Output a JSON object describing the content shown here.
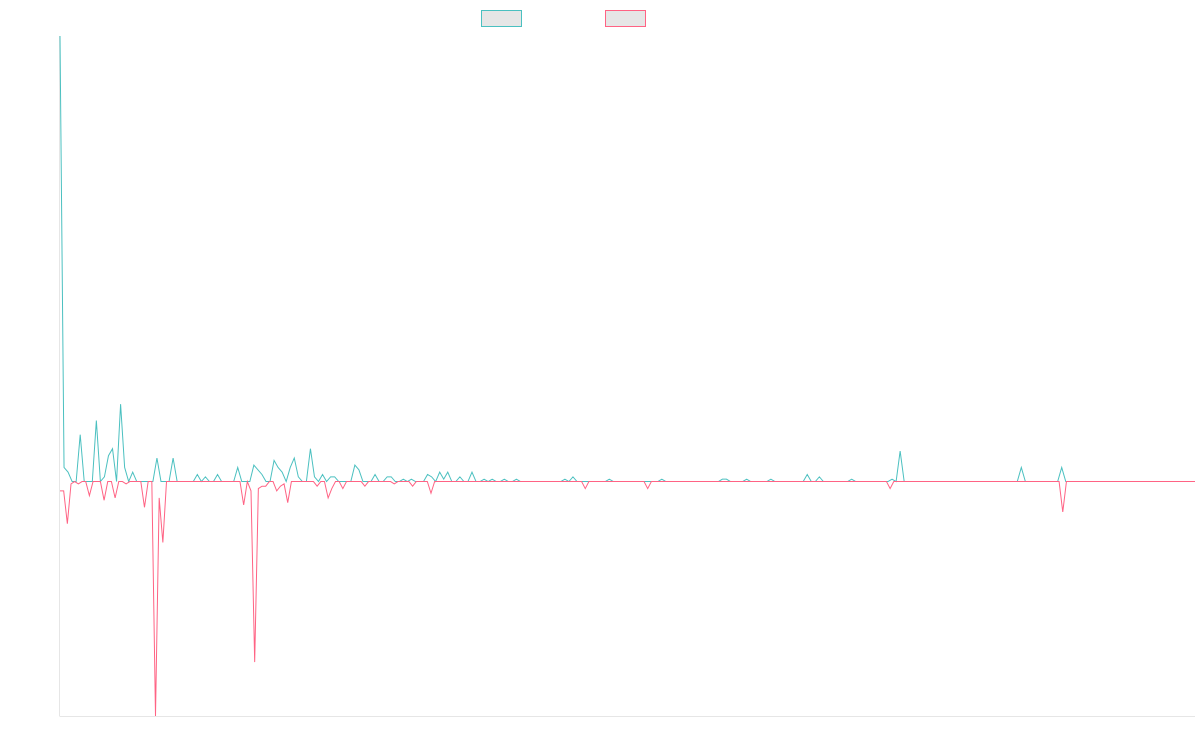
{
  "chart_data": {
    "type": "line",
    "title": "",
    "xlabel": "",
    "ylabel": "",
    "grid": false,
    "legend_position": "top-center",
    "ylim": [
      -1,
      1.9
    ],
    "series": [
      {
        "color": "#4bc0c0",
        "fill": "#e6e6e6",
        "values": [
          1.9,
          0.06,
          0.04,
          0,
          0,
          0.2,
          0,
          0,
          0,
          0.26,
          0,
          0.02,
          0.11,
          0.14,
          0,
          0.33,
          0.06,
          0,
          0.04,
          0,
          0,
          0,
          0,
          0,
          0.1,
          0,
          0,
          0,
          0.1,
          0,
          0,
          0,
          0,
          0,
          0.03,
          0,
          0.02,
          0,
          0,
          0.03,
          0,
          0,
          0,
          0,
          0.06,
          0,
          0,
          0,
          0.07,
          0.05,
          0.03,
          0,
          0,
          0.09,
          0.06,
          0.04,
          0,
          0.06,
          0.1,
          0.02,
          0,
          0,
          0.14,
          0.02,
          0,
          0.03,
          0,
          0.02,
          0.02,
          0,
          0,
          0,
          0,
          0.07,
          0.05,
          0,
          0,
          0,
          0.03,
          0,
          0,
          0.02,
          0.02,
          0,
          0,
          0.01,
          0,
          0.01,
          0,
          0,
          0,
          0.03,
          0.02,
          0,
          0.04,
          0.01,
          0.04,
          0,
          0,
          0.02,
          0,
          0,
          0.04,
          0,
          0,
          0.01,
          0,
          0.01,
          0,
          0,
          0.01,
          0,
          0,
          0.01,
          0,
          0,
          0,
          0,
          0,
          0,
          0,
          0,
          0,
          0,
          0,
          0.01,
          0,
          0.02,
          0,
          0,
          0,
          0,
          0,
          0,
          0,
          0,
          0.01,
          0,
          0,
          0,
          0,
          0,
          0,
          0,
          0,
          0,
          0,
          0,
          0,
          0.01,
          0,
          0,
          0,
          0,
          0,
          0,
          0,
          0,
          0,
          0,
          0,
          0,
          0,
          0,
          0.01,
          0.01,
          0,
          0,
          0,
          0,
          0.01,
          0,
          0,
          0,
          0,
          0,
          0.01,
          0,
          0,
          0,
          0,
          0,
          0,
          0,
          0,
          0.03,
          0,
          0,
          0.02,
          0,
          0,
          0,
          0,
          0,
          0,
          0,
          0.01,
          0,
          0,
          0,
          0,
          0,
          0,
          0,
          0,
          0,
          0.01,
          0,
          0.13,
          0,
          0,
          0,
          0,
          0,
          0,
          0,
          0,
          0,
          0,
          0,
          0,
          0,
          0,
          0,
          0,
          0,
          0,
          0,
          0,
          0,
          0,
          0,
          0,
          0,
          0,
          0,
          0,
          0,
          0.06,
          0,
          0,
          0,
          0,
          0,
          0,
          0,
          0,
          0,
          0.06,
          0,
          0,
          0,
          0,
          0,
          0,
          0,
          0,
          0,
          0,
          0,
          0,
          0,
          0,
          0,
          0,
          0,
          0,
          0,
          0,
          0,
          0,
          0,
          0,
          0,
          0,
          0,
          0,
          0,
          0,
          0,
          0,
          0
        ]
      },
      {
        "color": "#ff6384",
        "fill": "#e6e6e6",
        "values": [
          -0.04,
          -0.04,
          -0.18,
          -0.01,
          0,
          -0.01,
          0,
          0,
          -0.06,
          0,
          0,
          0,
          -0.08,
          0,
          0,
          -0.07,
          0,
          0,
          -0.01,
          0,
          0,
          0,
          0,
          -0.11,
          0,
          0,
          -1,
          -0.07,
          -0.26,
          0,
          0,
          0,
          0,
          0,
          0,
          0,
          0,
          0,
          0,
          0,
          0,
          0,
          0,
          0,
          0,
          0,
          0,
          0,
          0,
          0,
          -0.1,
          0,
          -0.04,
          -0.77,
          -0.03,
          -0.02,
          -0.02,
          0,
          0,
          -0.04,
          -0.02,
          -0.01,
          -0.09,
          0,
          0,
          0,
          0,
          0,
          0,
          0,
          -0.02,
          0,
          0,
          -0.07,
          -0.03,
          0,
          0,
          -0.03,
          0,
          0,
          0,
          0,
          0,
          -0.02,
          0,
          0,
          0,
          0,
          0,
          0,
          0,
          -0.01,
          0,
          0,
          0,
          0,
          -0.02,
          0,
          0,
          0,
          0,
          -0.05,
          0,
          0,
          0,
          0,
          0,
          0,
          0,
          0,
          0,
          0,
          0,
          0,
          0,
          0,
          0,
          0,
          0,
          0,
          0,
          0,
          0,
          0,
          0,
          0,
          0,
          0,
          0,
          0,
          0,
          0,
          0,
          0,
          0,
          0,
          0,
          0,
          0,
          0,
          0,
          0,
          0,
          -0.03,
          0,
          0,
          0,
          0,
          0,
          0,
          0,
          0,
          0,
          0,
          0,
          0,
          0,
          0,
          0,
          0,
          -0.03,
          0,
          0,
          0,
          0,
          0,
          0,
          0,
          0,
          0,
          0,
          0,
          0,
          0,
          0,
          0,
          0,
          0,
          0,
          0,
          0,
          0,
          0,
          0,
          0,
          0,
          0,
          0,
          0,
          0,
          0,
          0,
          0,
          0,
          0,
          0,
          0,
          0,
          0,
          0,
          0,
          0,
          0,
          0,
          0,
          0,
          0,
          0,
          0,
          0,
          0,
          0,
          0,
          0,
          0,
          0,
          0,
          0,
          0,
          0,
          0,
          0,
          0,
          0,
          0,
          0,
          -0.03,
          0,
          0,
          0,
          0,
          0,
          0,
          0,
          0,
          0,
          0,
          0,
          0,
          0,
          0,
          0,
          0,
          0,
          0,
          0,
          0,
          0,
          0,
          0,
          0,
          0,
          0,
          0,
          0,
          0,
          0,
          0,
          0,
          0,
          0,
          0,
          0,
          0,
          0,
          0,
          0,
          0,
          0,
          0,
          0,
          0,
          0,
          -0.13,
          0,
          0,
          0,
          0,
          0,
          0,
          0,
          0,
          0,
          0,
          0,
          0,
          0,
          0,
          0,
          0,
          0,
          0,
          0,
          0,
          0,
          0,
          0,
          0,
          0,
          0,
          0,
          0,
          0,
          0,
          0,
          0,
          0,
          0,
          0,
          0
        ]
      }
    ]
  }
}
